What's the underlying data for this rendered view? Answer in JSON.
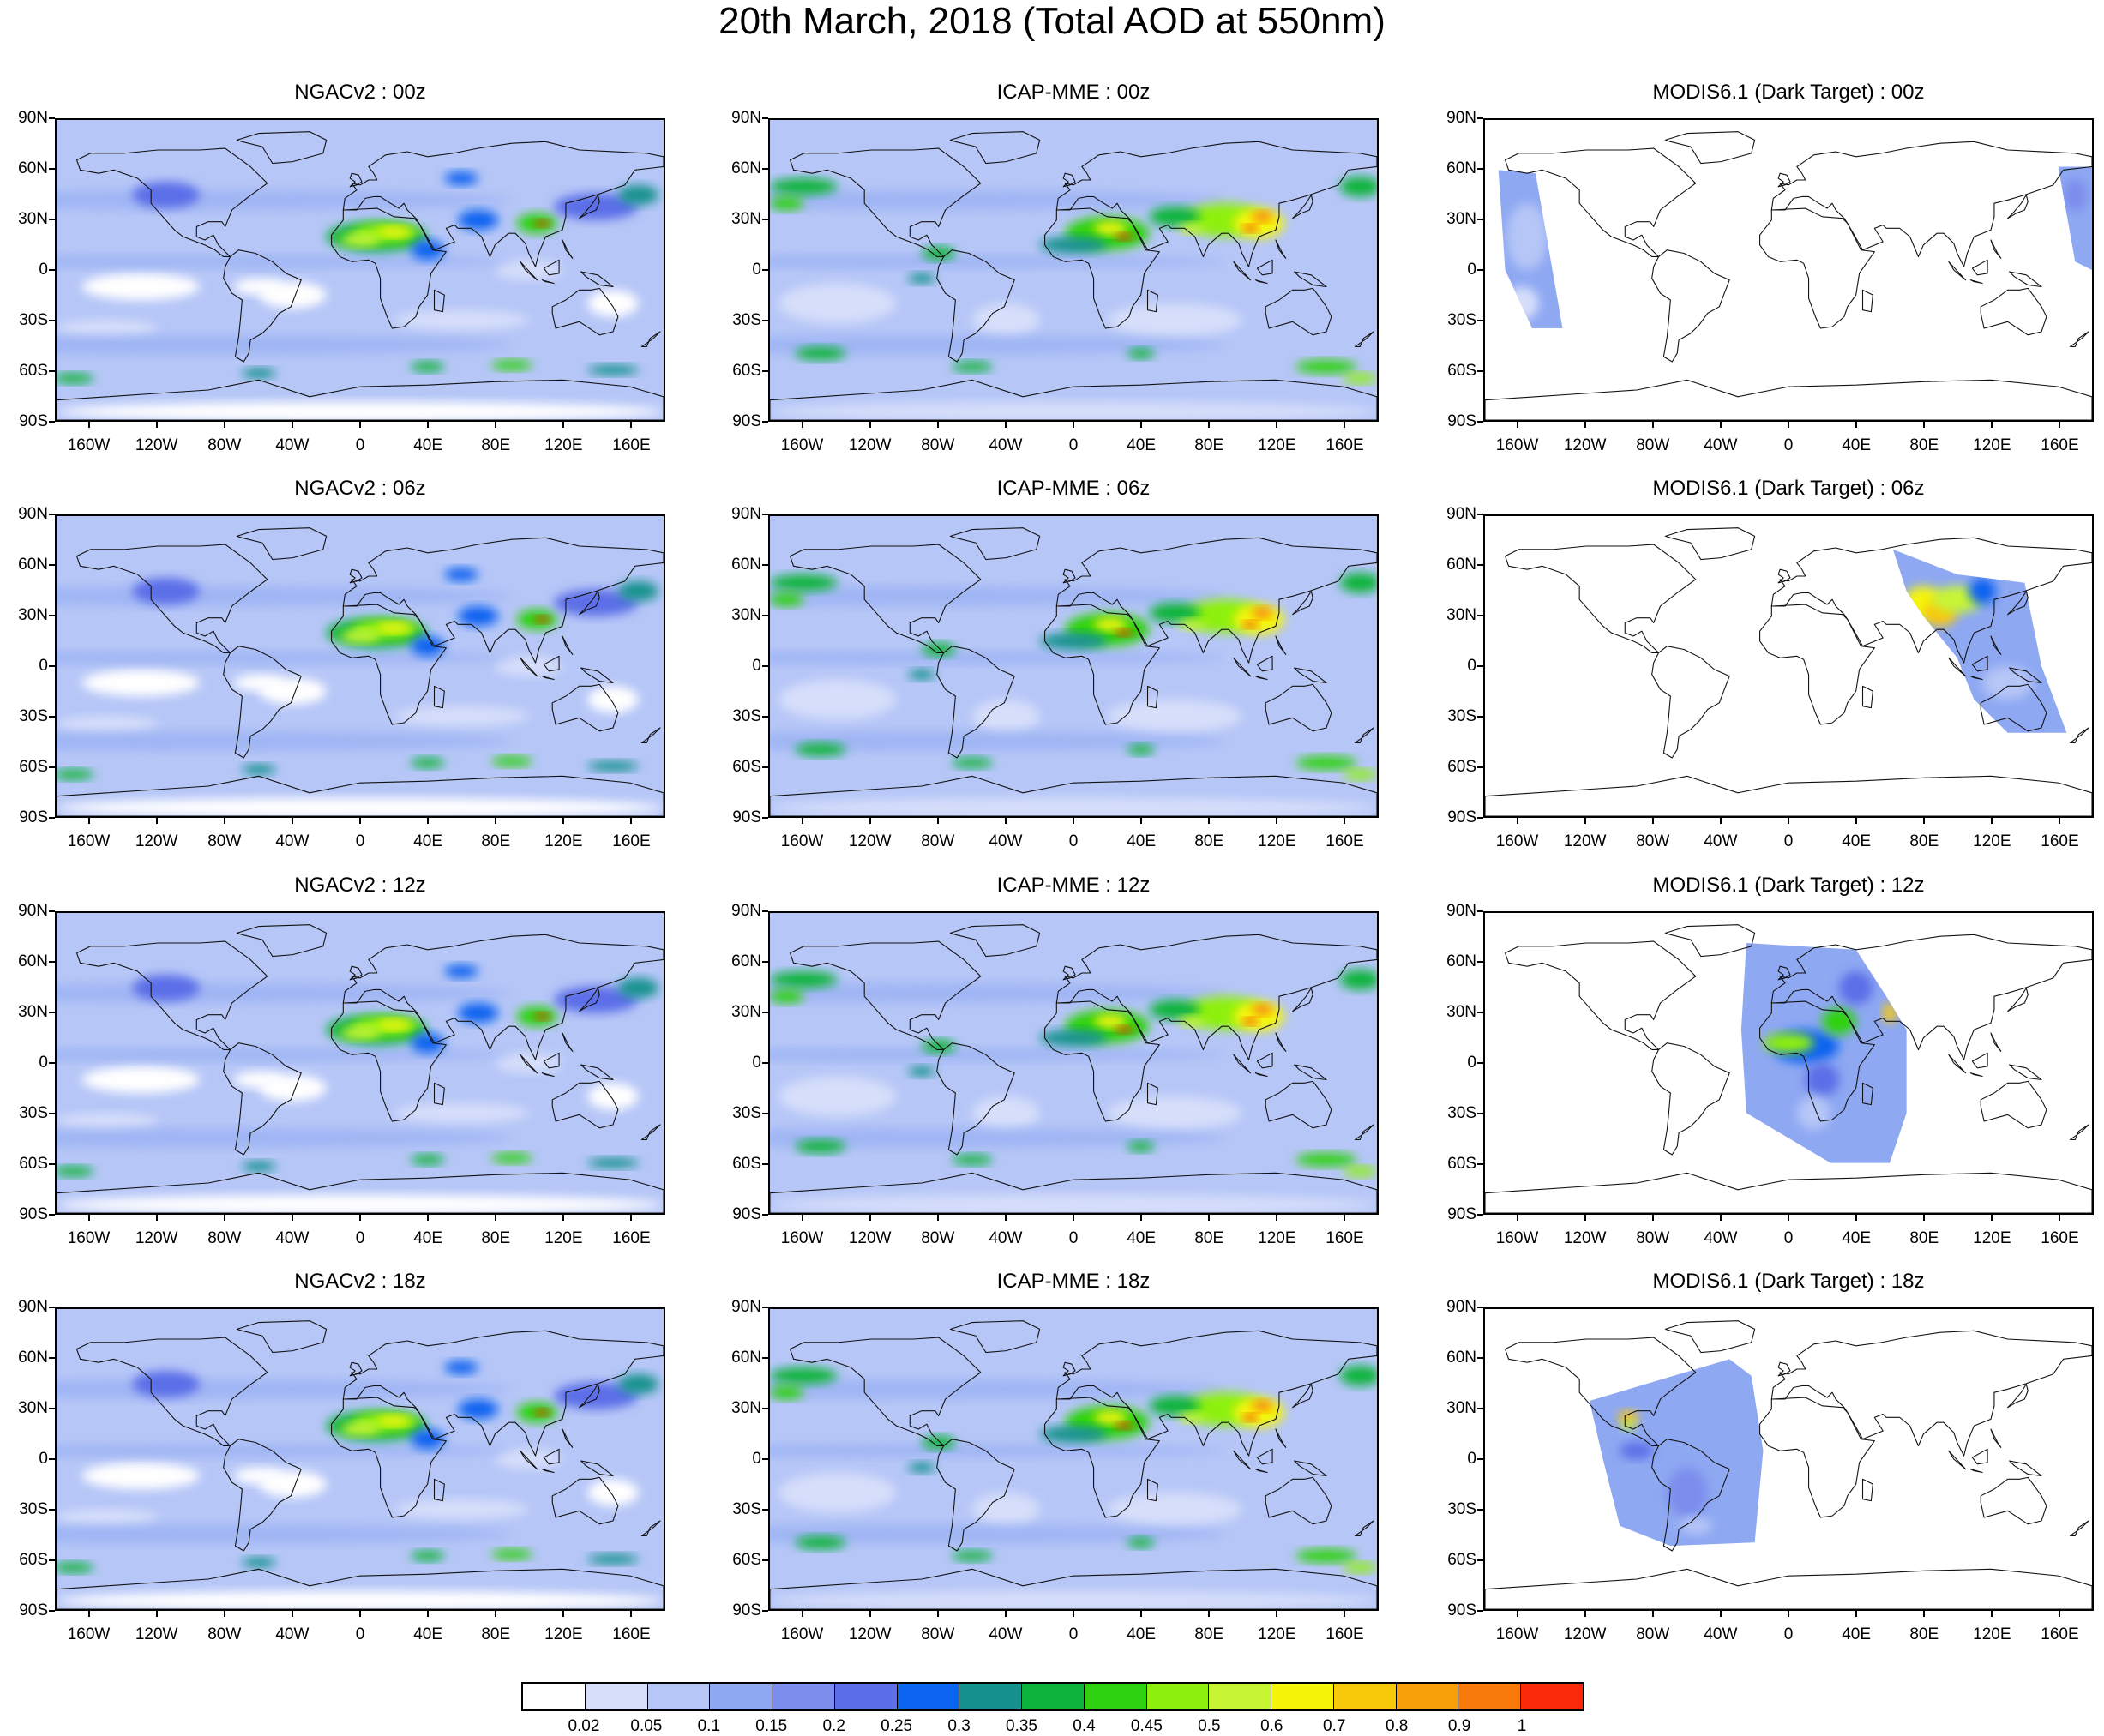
{
  "title": "20th March, 2018 (Total AOD at 550nm)",
  "panels": [
    {
      "label": "NGACv2 : 00z",
      "model": "ngac",
      "time": "00z",
      "swath": null
    },
    {
      "label": "ICAP-MME : 00z",
      "model": "icap",
      "time": "00z",
      "swath": null
    },
    {
      "label": "MODIS6.1 (Dark Target) : 00z",
      "model": "modis",
      "time": "00z",
      "swath": "pacific-split"
    },
    {
      "label": "NGACv2 : 06z",
      "model": "ngac",
      "time": "06z",
      "swath": null
    },
    {
      "label": "ICAP-MME : 06z",
      "model": "icap",
      "time": "06z",
      "swath": null
    },
    {
      "label": "MODIS6.1 (Dark Target) : 06z",
      "model": "modis",
      "time": "06z",
      "swath": "asia"
    },
    {
      "label": "NGACv2 : 12z",
      "model": "ngac",
      "time": "12z",
      "swath": null
    },
    {
      "label": "ICAP-MME : 12z",
      "model": "icap",
      "time": "12z",
      "swath": null
    },
    {
      "label": "MODIS6.1 (Dark Target) : 12z",
      "model": "modis",
      "time": "12z",
      "swath": "africa-europe"
    },
    {
      "label": "NGACv2 : 18z",
      "model": "ngac",
      "time": "18z",
      "swath": null
    },
    {
      "label": "ICAP-MME : 18z",
      "model": "icap",
      "time": "18z",
      "swath": null
    },
    {
      "label": "MODIS6.1 (Dark Target) : 18z",
      "model": "modis",
      "time": "18z",
      "swath": "americas"
    }
  ],
  "lat_ticks": [
    "90N",
    "60N",
    "30N",
    "0",
    "30S",
    "60S",
    "90S"
  ],
  "lon_ticks": [
    "160W",
    "120W",
    "80W",
    "40W",
    "0",
    "40E",
    "80E",
    "120E",
    "160E"
  ],
  "colorbar": {
    "colors": [
      "#ffffff",
      "#d6defa",
      "#b6c6f7",
      "#8ea8f2",
      "#7b8ded",
      "#5c6ee8",
      "#0a64f0",
      "#15928e",
      "#0db43c",
      "#2fd210",
      "#8ef00e",
      "#c7f534",
      "#f5f50a",
      "#f8c80a",
      "#f8a00a",
      "#f87a0a",
      "#f82a0a"
    ],
    "labels": [
      "0.02",
      "0.05",
      "0.1",
      "0.15",
      "0.2",
      "0.25",
      "0.3",
      "0.35",
      "0.4",
      "0.45",
      "0.5",
      "0.6",
      "0.7",
      "0.8",
      "0.9",
      "1"
    ]
  }
}
